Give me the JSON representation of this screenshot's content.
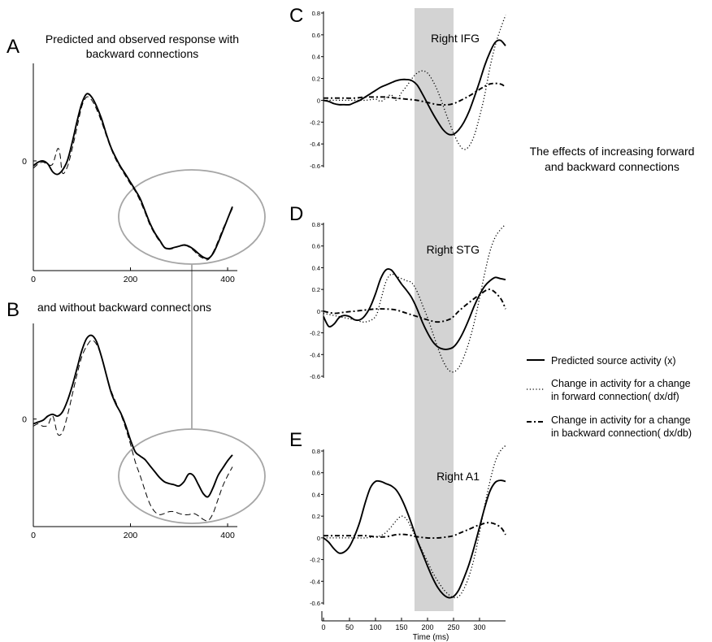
{
  "panels": {
    "A": {
      "letter": "A",
      "title_line1": "Predicted and observed response with",
      "title_line2": "backward connections"
    },
    "B": {
      "letter": "B",
      "title": "and without backward connections"
    },
    "C": {
      "letter": "C",
      "region": "Right IFG"
    },
    "D": {
      "letter": "D",
      "region": "Right STG"
    },
    "E": {
      "letter": "E",
      "region": "Right A1"
    }
  },
  "annotation": {
    "line1": "The effects of increasing forward",
    "line2": "and backward connections"
  },
  "legend": {
    "solid": "Predicted source activity (x)",
    "dotted_line1": "Change in activity for a change",
    "dotted_line2": "in forward connection( dx/df)",
    "dashdot_line1": "Change in activity for a change",
    "dashdot_line2": "in backward connection( dx/db)"
  },
  "colors": {
    "shade": "#d3d3d3",
    "ellipse": "#a6a6a6",
    "line": "#000000"
  },
  "chart_data": [
    {
      "id": "A",
      "type": "line",
      "title": "Predicted and observed response with backward connections",
      "xlim": [
        0,
        420
      ],
      "xticks": [
        0,
        200,
        400
      ],
      "yticks": [
        0
      ],
      "ylim": [
        -1.8,
        1.6
      ],
      "series": [
        {
          "style": "solid",
          "x": [
            0,
            10,
            20,
            30,
            40,
            50,
            60,
            70,
            80,
            90,
            100,
            110,
            120,
            130,
            140,
            150,
            160,
            170,
            180,
            190,
            200,
            210,
            220,
            230,
            240,
            250,
            260,
            270,
            280,
            290,
            300,
            310,
            320,
            330,
            340,
            350,
            360,
            370,
            380,
            390,
            400,
            410
          ],
          "y": [
            -0.08,
            -0.02,
            0,
            -0.05,
            -0.18,
            -0.22,
            -0.15,
            0,
            0.3,
            0.65,
            0.95,
            1.1,
            1.05,
            0.9,
            0.7,
            0.45,
            0.22,
            0.05,
            -0.1,
            -0.22,
            -0.35,
            -0.48,
            -0.62,
            -0.82,
            -1.02,
            -1.18,
            -1.3,
            -1.42,
            -1.44,
            -1.42,
            -1.4,
            -1.38,
            -1.4,
            -1.45,
            -1.52,
            -1.58,
            -1.6,
            -1.52,
            -1.35,
            -1.15,
            -0.95,
            -0.75
          ]
        },
        {
          "style": "dashed",
          "x": [
            0,
            10,
            20,
            30,
            40,
            50,
            55,
            60,
            70,
            80,
            90,
            100,
            110,
            120,
            130,
            140,
            150,
            160,
            170,
            180,
            190,
            200,
            210,
            220,
            230,
            240,
            250,
            260,
            270,
            280,
            290,
            300,
            310,
            320,
            330,
            340,
            350,
            360,
            370,
            380,
            390,
            400,
            410
          ],
          "y": [
            -0.12,
            -0.05,
            -0.02,
            -0.06,
            -0.05,
            0.2,
            0.1,
            -0.2,
            -0.1,
            0.2,
            0.55,
            0.9,
            1.05,
            1.0,
            0.85,
            0.65,
            0.42,
            0.2,
            0.02,
            -0.12,
            -0.25,
            -0.38,
            -0.5,
            -0.66,
            -0.85,
            -1.05,
            -1.2,
            -1.32,
            -1.42,
            -1.45,
            -1.43,
            -1.4,
            -1.37,
            -1.41,
            -1.47,
            -1.55,
            -1.6,
            -1.62,
            -1.5,
            -1.32,
            -1.12,
            -0.95,
            -0.78
          ]
        }
      ]
    },
    {
      "id": "B",
      "type": "line",
      "title": "and without backward connections",
      "xlim": [
        0,
        420
      ],
      "xticks": [
        0,
        200,
        400
      ],
      "yticks": [
        0
      ],
      "ylim": [
        -1.8,
        1.6
      ],
      "series": [
        {
          "style": "solid",
          "x": [
            0,
            10,
            20,
            30,
            40,
            50,
            60,
            70,
            80,
            90,
            100,
            110,
            120,
            130,
            140,
            150,
            160,
            170,
            180,
            190,
            200,
            210,
            220,
            230,
            240,
            250,
            260,
            270,
            280,
            290,
            300,
            310,
            320,
            330,
            340,
            350,
            360,
            370,
            380,
            390,
            400,
            410
          ],
          "y": [
            -0.08,
            -0.05,
            -0.02,
            0.05,
            0.08,
            0.05,
            0.12,
            0.3,
            0.55,
            0.85,
            1.15,
            1.35,
            1.4,
            1.3,
            1.05,
            0.75,
            0.45,
            0.25,
            0.1,
            -0.1,
            -0.35,
            -0.55,
            -0.62,
            -0.68,
            -0.78,
            -0.88,
            -0.98,
            -1.05,
            -1.08,
            -1.1,
            -1.12,
            -1.05,
            -0.92,
            -0.95,
            -1.1,
            -1.25,
            -1.3,
            -1.15,
            -0.95,
            -0.82,
            -0.7,
            -0.6
          ]
        },
        {
          "style": "dashed",
          "x": [
            0,
            10,
            20,
            30,
            40,
            50,
            60,
            70,
            80,
            90,
            100,
            110,
            120,
            130,
            140,
            150,
            160,
            170,
            180,
            190,
            200,
            210,
            220,
            230,
            240,
            250,
            260,
            270,
            280,
            290,
            300,
            310,
            320,
            330,
            340,
            350,
            360,
            370,
            380,
            390,
            400,
            410
          ],
          "y": [
            -0.12,
            -0.08,
            -0.12,
            -0.1,
            0.05,
            -0.25,
            -0.22,
            0.05,
            0.4,
            0.75,
            1.05,
            1.22,
            1.32,
            1.25,
            1.05,
            0.75,
            0.48,
            0.28,
            0.08,
            -0.15,
            -0.42,
            -0.72,
            -0.95,
            -1.2,
            -1.42,
            -1.55,
            -1.6,
            -1.58,
            -1.55,
            -1.55,
            -1.58,
            -1.6,
            -1.6,
            -1.58,
            -1.62,
            -1.68,
            -1.7,
            -1.58,
            -1.35,
            -1.12,
            -0.95,
            -0.8
          ]
        }
      ]
    },
    {
      "id": "C",
      "type": "line",
      "title": "Right IFG",
      "xlim": [
        0,
        350
      ],
      "ylim": [
        -0.6,
        0.8
      ],
      "yticks": [
        -0.6,
        -0.4,
        -0.2,
        0,
        0.2,
        0.4,
        0.6,
        0.8
      ],
      "ytick_labels": [
        "-0.6",
        "-0.4",
        "-0.2",
        "0",
        "0.2",
        "0.4",
        "0.6",
        "0.8"
      ],
      "shaded_x": [
        175,
        250
      ],
      "series": [
        {
          "style": "solid",
          "x": [
            0,
            10,
            20,
            30,
            40,
            50,
            60,
            70,
            80,
            90,
            100,
            110,
            120,
            130,
            140,
            150,
            160,
            170,
            180,
            190,
            200,
            210,
            220,
            230,
            240,
            250,
            260,
            270,
            280,
            290,
            300,
            310,
            320,
            330,
            340,
            350
          ],
          "y": [
            0,
            -0.01,
            -0.03,
            -0.04,
            -0.04,
            -0.04,
            -0.02,
            0,
            0.03,
            0.06,
            0.09,
            0.12,
            0.14,
            0.16,
            0.18,
            0.19,
            0.19,
            0.18,
            0.14,
            0.06,
            -0.03,
            -0.12,
            -0.2,
            -0.27,
            -0.31,
            -0.31,
            -0.27,
            -0.2,
            -0.1,
            0.03,
            0.17,
            0.32,
            0.44,
            0.53,
            0.55,
            0.5
          ]
        },
        {
          "style": "dotted",
          "x": [
            0,
            20,
            40,
            60,
            80,
            100,
            110,
            120,
            130,
            140,
            150,
            160,
            170,
            180,
            190,
            200,
            210,
            220,
            230,
            240,
            250,
            260,
            270,
            280,
            290,
            300,
            310,
            320,
            330,
            340,
            350
          ],
          "y": [
            0,
            0,
            0,
            0,
            0,
            0.01,
            -0.01,
            0.02,
            0.05,
            0,
            0.07,
            0.13,
            0.2,
            0.25,
            0.27,
            0.25,
            0.18,
            0.08,
            -0.05,
            -0.18,
            -0.3,
            -0.4,
            -0.45,
            -0.42,
            -0.32,
            -0.15,
            0.05,
            0.3,
            0.5,
            0.65,
            0.78
          ]
        },
        {
          "style": "dashdot",
          "x": [
            0,
            20,
            40,
            60,
            80,
            100,
            120,
            140,
            160,
            180,
            200,
            220,
            240,
            250,
            260,
            280,
            300,
            320,
            340,
            350
          ],
          "y": [
            0.02,
            0.02,
            0.02,
            0.02,
            0.03,
            0.03,
            0.03,
            0.02,
            0.01,
            0,
            -0.02,
            -0.04,
            -0.04,
            -0.03,
            -0.01,
            0.04,
            0.1,
            0.15,
            0.15,
            0.12
          ]
        }
      ]
    },
    {
      "id": "D",
      "type": "line",
      "title": "Right STG",
      "xlim": [
        0,
        350
      ],
      "ylim": [
        -0.6,
        0.8
      ],
      "yticks": [
        -0.6,
        -0.4,
        -0.2,
        0,
        0.2,
        0.4,
        0.6,
        0.8
      ],
      "ytick_labels": [
        "-0.6",
        "-0.4",
        "-0.2",
        "0",
        "0.2",
        "0.4",
        "0.6",
        "0.8"
      ],
      "shaded_x": [
        175,
        250
      ],
      "series": [
        {
          "style": "solid",
          "x": [
            0,
            10,
            20,
            30,
            40,
            50,
            60,
            70,
            80,
            90,
            100,
            110,
            120,
            130,
            140,
            150,
            160,
            170,
            180,
            190,
            200,
            210,
            220,
            230,
            240,
            250,
            260,
            270,
            280,
            290,
            300,
            310,
            320,
            330,
            340,
            350
          ],
          "y": [
            -0.05,
            -0.14,
            -0.12,
            -0.06,
            -0.04,
            -0.05,
            -0.08,
            -0.08,
            -0.04,
            0.04,
            0.16,
            0.3,
            0.38,
            0.38,
            0.32,
            0.25,
            0.19,
            0.12,
            0.02,
            -0.1,
            -0.2,
            -0.28,
            -0.33,
            -0.35,
            -0.35,
            -0.33,
            -0.27,
            -0.18,
            -0.07,
            0.05,
            0.15,
            0.23,
            0.28,
            0.31,
            0.3,
            0.29
          ]
        },
        {
          "style": "dotted",
          "x": [
            0,
            20,
            40,
            60,
            80,
            100,
            110,
            120,
            130,
            140,
            150,
            160,
            170,
            180,
            190,
            200,
            210,
            220,
            230,
            240,
            250,
            260,
            270,
            280,
            290,
            300,
            310,
            320,
            330,
            340,
            350
          ],
          "y": [
            -0.02,
            -0.04,
            -0.06,
            -0.08,
            -0.1,
            -0.05,
            0.1,
            0.27,
            0.34,
            0.32,
            0.3,
            0.28,
            0.26,
            0.18,
            0.06,
            -0.06,
            -0.2,
            -0.34,
            -0.46,
            -0.54,
            -0.56,
            -0.52,
            -0.42,
            -0.28,
            -0.1,
            0.12,
            0.35,
            0.55,
            0.68,
            0.75,
            0.8
          ]
        },
        {
          "style": "dashdot",
          "x": [
            0,
            20,
            40,
            60,
            80,
            100,
            120,
            140,
            160,
            180,
            200,
            220,
            240,
            250,
            260,
            280,
            300,
            320,
            340,
            350
          ],
          "y": [
            0,
            -0.02,
            -0.01,
            0,
            0.01,
            0.02,
            0.02,
            0.01,
            -0.02,
            -0.05,
            -0.08,
            -0.1,
            -0.08,
            -0.05,
            0,
            0.08,
            0.15,
            0.2,
            0.12,
            0.02
          ]
        }
      ]
    },
    {
      "id": "E",
      "type": "line",
      "title": "Right A1",
      "xlim": [
        0,
        350
      ],
      "ylim": [
        -0.6,
        0.8
      ],
      "yticks": [
        -0.6,
        -0.4,
        -0.2,
        0,
        0.2,
        0.4,
        0.6,
        0.8
      ],
      "ytick_labels": [
        "-0.6",
        "-0.4",
        "-0.2",
        "0",
        "0.2",
        "0.4",
        "0.6",
        "0.8"
      ],
      "xticks": [
        0,
        50,
        100,
        150,
        200,
        250,
        300
      ],
      "xlabel": "Time (ms)",
      "shaded_x": [
        175,
        250
      ],
      "series": [
        {
          "style": "solid",
          "x": [
            0,
            10,
            20,
            30,
            40,
            50,
            60,
            70,
            80,
            90,
            100,
            110,
            120,
            130,
            140,
            150,
            160,
            170,
            180,
            190,
            200,
            210,
            220,
            230,
            240,
            250,
            260,
            270,
            280,
            290,
            300,
            310,
            320,
            330,
            340,
            350
          ],
          "y": [
            0,
            -0.04,
            -0.1,
            -0.14,
            -0.13,
            -0.08,
            0.02,
            0.15,
            0.32,
            0.46,
            0.52,
            0.52,
            0.5,
            0.48,
            0.44,
            0.36,
            0.25,
            0.12,
            -0.02,
            -0.14,
            -0.26,
            -0.37,
            -0.46,
            -0.52,
            -0.55,
            -0.54,
            -0.48,
            -0.37,
            -0.24,
            -0.08,
            0.1,
            0.28,
            0.43,
            0.51,
            0.53,
            0.52
          ]
        },
        {
          "style": "dotted",
          "x": [
            0,
            20,
            40,
            60,
            80,
            100,
            110,
            120,
            130,
            140,
            150,
            160,
            170,
            180,
            190,
            200,
            210,
            220,
            230,
            240,
            250,
            260,
            270,
            280,
            290,
            300,
            310,
            320,
            330,
            340,
            350
          ],
          "y": [
            0,
            0,
            0,
            0,
            0,
            0.01,
            0.02,
            0.05,
            0.1,
            0.16,
            0.2,
            0.17,
            0.08,
            -0.02,
            -0.12,
            -0.22,
            -0.32,
            -0.4,
            -0.47,
            -0.52,
            -0.55,
            -0.54,
            -0.47,
            -0.35,
            -0.18,
            0.05,
            0.3,
            0.52,
            0.7,
            0.8,
            0.85
          ]
        },
        {
          "style": "dashdot",
          "x": [
            0,
            20,
            40,
            60,
            80,
            100,
            120,
            140,
            160,
            180,
            200,
            220,
            240,
            250,
            260,
            280,
            300,
            320,
            340,
            350
          ],
          "y": [
            0.02,
            0.02,
            0.02,
            0.02,
            0.02,
            0.01,
            0.01,
            0.03,
            0.03,
            0.01,
            0,
            0,
            0.01,
            0.02,
            0.04,
            0.08,
            0.12,
            0.14,
            0.1,
            0.03
          ]
        }
      ]
    }
  ]
}
